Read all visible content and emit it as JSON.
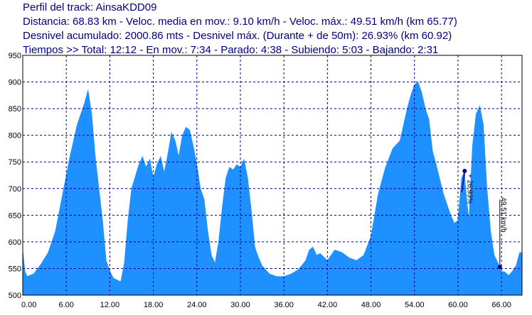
{
  "header": {
    "line1": "Perfil del track: AinsaKDD09",
    "line2": "Distancia: 68.83 km - Veloc. media en mov.: 9.10 km/h - Veloc. máx.: 49.51 km/h (km 65.77)",
    "line3": "Desnivel acumulado: 2000.86 mts - Desnivel máx. (Durante + de 50m): 26.93% (km 60.92)",
    "line4": "Tiempos >> Total: 12:12 - En mov.: 7:34 - Parado: 4:38 - Subiendo: 5:03 - Bajando: 2:31"
  },
  "colors": {
    "fill": "#1e90ff",
    "grid": "#00008b",
    "header_text": "#000080",
    "marker": "#00008b"
  },
  "chart_data": {
    "type": "area",
    "title": "",
    "xlabel": "",
    "ylabel": "",
    "xlim": [
      0,
      68.83
    ],
    "ylim": [
      500,
      950
    ],
    "x_ticks": [
      0,
      6,
      12,
      18,
      24,
      30,
      36,
      42,
      48,
      54,
      60,
      66
    ],
    "x_tick_labels": [
      "0.00",
      "6.00",
      "12.00",
      "18.00",
      "24.00",
      "30.00",
      "36.00",
      "42.00",
      "48.00",
      "54.00",
      "60.00",
      "66.00"
    ],
    "y_ticks": [
      500,
      550,
      600,
      650,
      700,
      750,
      800,
      850,
      900,
      950
    ],
    "y_tick_labels": [
      "500",
      "550",
      "600",
      "650",
      "700",
      "750",
      "800",
      "850",
      "900",
      "950"
    ],
    "grid": true,
    "series": [
      {
        "x": [
          0,
          0.3,
          0.6,
          1.5,
          2.5,
          3.5,
          4.5,
          5.5,
          6.5,
          7.5,
          8.5,
          9.0,
          9.5,
          10.0,
          11.0,
          11.5,
          12.0,
          12.5,
          13.5,
          14.0,
          14.5,
          15.0,
          16.0,
          16.5,
          17.0,
          17.5,
          18.0,
          18.5,
          19.0,
          19.5,
          20.0,
          20.5,
          21.0,
          21.5,
          22.0,
          22.5,
          23.0,
          23.5,
          24.0,
          24.5,
          25.0,
          25.5,
          26.0,
          26.5,
          27.0,
          27.5,
          28.0,
          28.5,
          29.0,
          29.5,
          30.0,
          30.5,
          31.0,
          31.5,
          32.0,
          32.5,
          33.0,
          34.0,
          35.0,
          36.0,
          37.0,
          38.0,
          39.0,
          39.5,
          40.0,
          40.5,
          41.0,
          42.0,
          43.0,
          44.0,
          45.0,
          46.0,
          47.0,
          48.0,
          49.0,
          50.0,
          51.0,
          52.0,
          53.0,
          53.5,
          54.0,
          54.5,
          55.0,
          55.5,
          56.0,
          56.5,
          57.0,
          58.0,
          59.0,
          59.5,
          60.0,
          60.5,
          60.92,
          61.0,
          61.5,
          62.0,
          62.5,
          63.0,
          63.5,
          64.0,
          64.5,
          65.0,
          65.77,
          66.0,
          66.5,
          67.0,
          67.5,
          68.0,
          68.5,
          68.83
        ],
        "y": [
          585,
          545,
          535,
          540,
          558,
          580,
          620,
          690,
          760,
          820,
          860,
          885,
          840,
          760,
          640,
          565,
          545,
          532,
          525,
          560,
          640,
          700,
          745,
          760,
          740,
          755,
          720,
          745,
          760,
          730,
          765,
          805,
          790,
          760,
          800,
          815,
          810,
          780,
          745,
          700,
          680,
          620,
          575,
          560,
          600,
          665,
          720,
          740,
          735,
          745,
          740,
          755,
          720,
          660,
          590,
          570,
          555,
          540,
          535,
          535,
          540,
          548,
          565,
          585,
          590,
          575,
          578,
          565,
          585,
          580,
          570,
          565,
          575,
          610,
          690,
          740,
          775,
          790,
          850,
          875,
          895,
          900,
          880,
          850,
          830,
          770,
          745,
          690,
          650,
          635,
          640,
          720,
          733,
          710,
          640,
          780,
          840,
          855,
          820,
          700,
          620,
          575,
          553,
          545,
          543,
          537,
          545,
          555,
          580,
          580
        ]
      }
    ],
    "annotations": [
      {
        "label": "+ 26.93%",
        "x": 60.92,
        "y": 733
      },
      {
        "label": "49.51 km/h",
        "x": 65.77,
        "y": 553
      }
    ]
  }
}
